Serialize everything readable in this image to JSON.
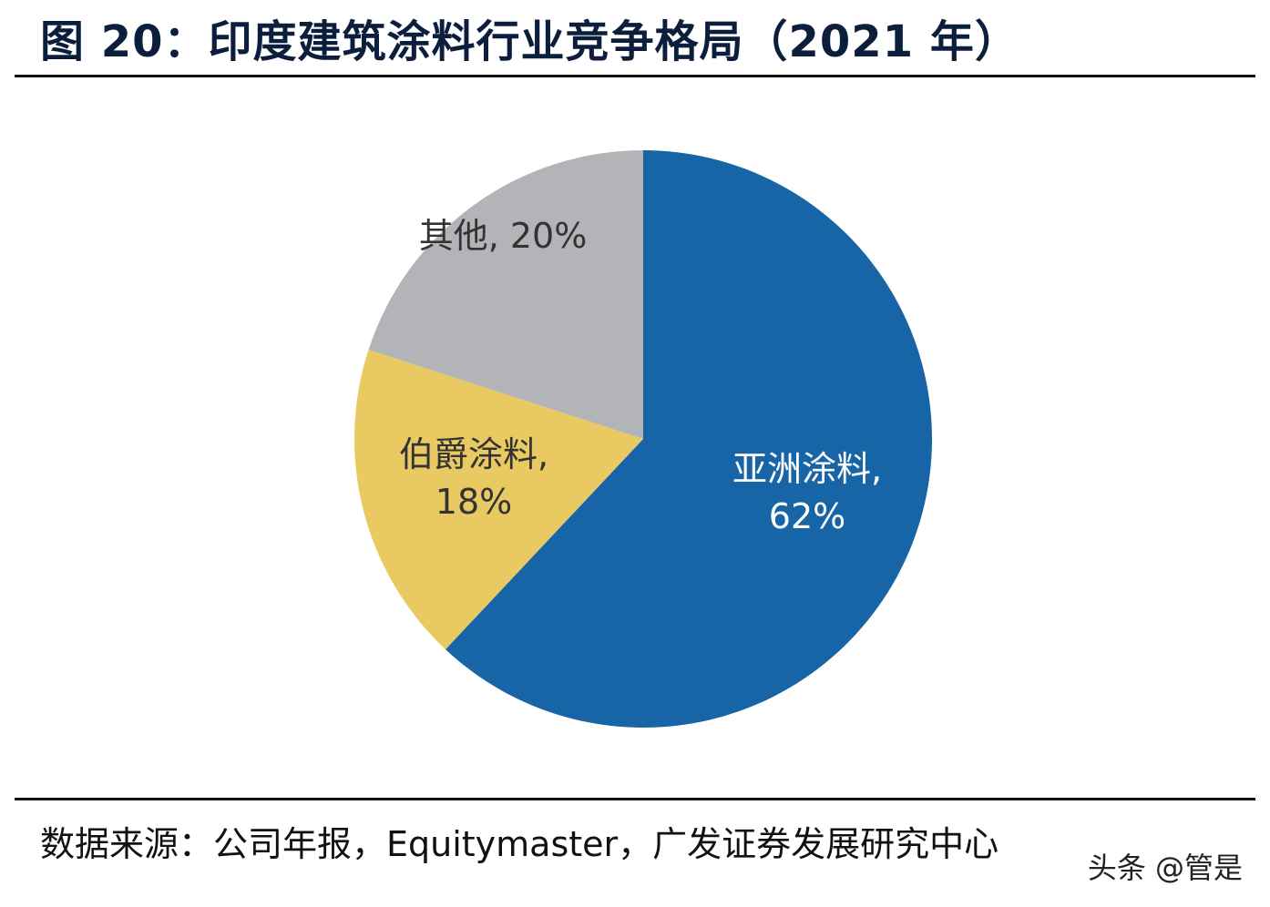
{
  "title": "图 20：印度建筑涂料行业竞争格局（2021 年）",
  "source": "数据来源：公司年报，Equitymaster，广发证券发展研究中心",
  "watermark": "头条 @管是",
  "chart_data": {
    "type": "pie",
    "start_angle_deg": 0,
    "direction": "clockwise",
    "slices": [
      {
        "name": "亚洲涂料",
        "value": 62,
        "label_line1": "亚洲涂料,",
        "label_line2": "62%",
        "color": "#1764a6",
        "label_color": "#ffffff"
      },
      {
        "name": "伯爵涂料",
        "value": 18,
        "label_line1": "伯爵涂料,",
        "label_line2": "18%",
        "color": "#e8c962",
        "label_color": "#333333"
      },
      {
        "name": "其他",
        "value": 20,
        "label_line1": "其他, 20%",
        "label_line2": "",
        "color": "#b3b4b7",
        "label_color": "#333333"
      }
    ]
  }
}
